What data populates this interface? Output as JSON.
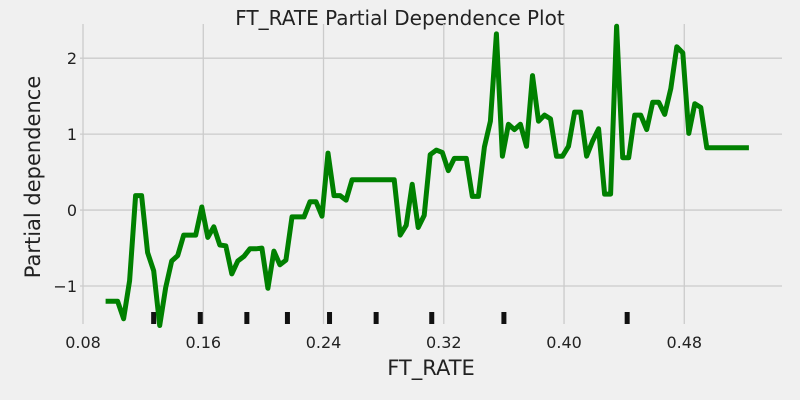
{
  "chart_data": {
    "type": "line",
    "title": "FT_RATE Partial Dependence Plot",
    "xlabel": "FT_RATE",
    "ylabel": "Partial dependence",
    "xlim": [
      0.078,
      0.545
    ],
    "ylim": [
      -1.5,
      2.45
    ],
    "x_ticks": [
      0.08,
      0.16,
      0.24,
      0.32,
      0.4,
      0.48
    ],
    "x_tick_labels": [
      "0.08",
      "0.16",
      "0.24",
      "0.32",
      "0.40",
      "0.48"
    ],
    "y_ticks": [
      -1,
      0,
      1,
      2
    ],
    "y_tick_labels": [
      "−1",
      "0",
      "1",
      "2"
    ],
    "grid": true,
    "line_color": "#008000",
    "rug_color": "#111111",
    "rug_x": [
      0.127,
      0.158,
      0.189,
      0.216,
      0.244,
      0.275,
      0.312,
      0.36,
      0.442
    ],
    "series": [
      {
        "x": [
          0.095,
          0.099,
          0.103,
          0.107,
          0.111,
          0.115,
          0.119,
          0.123,
          0.127,
          0.131,
          0.135,
          0.139,
          0.143,
          0.147,
          0.151,
          0.155,
          0.159,
          0.163,
          0.167,
          0.171,
          0.175,
          0.179,
          0.183,
          0.187,
          0.191,
          0.195,
          0.199,
          0.203,
          0.207,
          0.211,
          0.215,
          0.219,
          0.223,
          0.227,
          0.231,
          0.235,
          0.239,
          0.243,
          0.247,
          0.251,
          0.255,
          0.259,
          0.263,
          0.267,
          0.271,
          0.275,
          0.279,
          0.283,
          0.287,
          0.291,
          0.295,
          0.299,
          0.303,
          0.307,
          0.311,
          0.315,
          0.319,
          0.323,
          0.327,
          0.331,
          0.335,
          0.339,
          0.343,
          0.347,
          0.351,
          0.355,
          0.359,
          0.363,
          0.367,
          0.371,
          0.375,
          0.379,
          0.383,
          0.387,
          0.391,
          0.395,
          0.399,
          0.403,
          0.407,
          0.411,
          0.415,
          0.419,
          0.423,
          0.427,
          0.431,
          0.435,
          0.439,
          0.443,
          0.447,
          0.451,
          0.455,
          0.459,
          0.463,
          0.467,
          0.471,
          0.475,
          0.479,
          0.483,
          0.487,
          0.491,
          0.495,
          0.499,
          0.503,
          0.507,
          0.511,
          0.515,
          0.519,
          0.523
        ],
        "y": [
          -1.2,
          -1.2,
          -1.2,
          -1.43,
          -0.93,
          0.19,
          0.19,
          -0.56,
          -0.8,
          -1.52,
          -1.02,
          -0.67,
          -0.6,
          -0.33,
          -0.33,
          -0.33,
          0.04,
          -0.36,
          -0.22,
          -0.46,
          -0.47,
          -0.84,
          -0.67,
          -0.61,
          -0.51,
          -0.51,
          -0.5,
          -1.03,
          -0.54,
          -0.72,
          -0.66,
          -0.09,
          -0.09,
          -0.09,
          0.11,
          0.11,
          -0.08,
          0.75,
          0.19,
          0.19,
          0.13,
          0.4,
          0.4,
          0.4,
          0.4,
          0.4,
          0.4,
          0.4,
          0.4,
          -0.33,
          -0.2,
          0.34,
          -0.23,
          -0.07,
          0.73,
          0.79,
          0.76,
          0.52,
          0.68,
          0.68,
          0.68,
          0.18,
          0.18,
          0.83,
          1.17,
          2.32,
          0.71,
          1.13,
          1.06,
          1.13,
          0.84,
          1.77,
          1.17,
          1.25,
          1.2,
          0.71,
          0.71,
          0.84,
          1.29,
          1.29,
          0.71,
          0.91,
          1.07,
          0.21,
          0.21,
          2.42,
          0.69,
          0.69,
          1.25,
          1.25,
          1.06,
          1.42,
          1.42,
          1.26,
          1.6,
          2.15,
          2.07,
          1.01,
          1.4,
          1.35,
          0.82,
          0.82,
          0.82,
          0.82,
          0.82,
          0.82,
          0.82,
          0.82
        ]
      }
    ]
  }
}
